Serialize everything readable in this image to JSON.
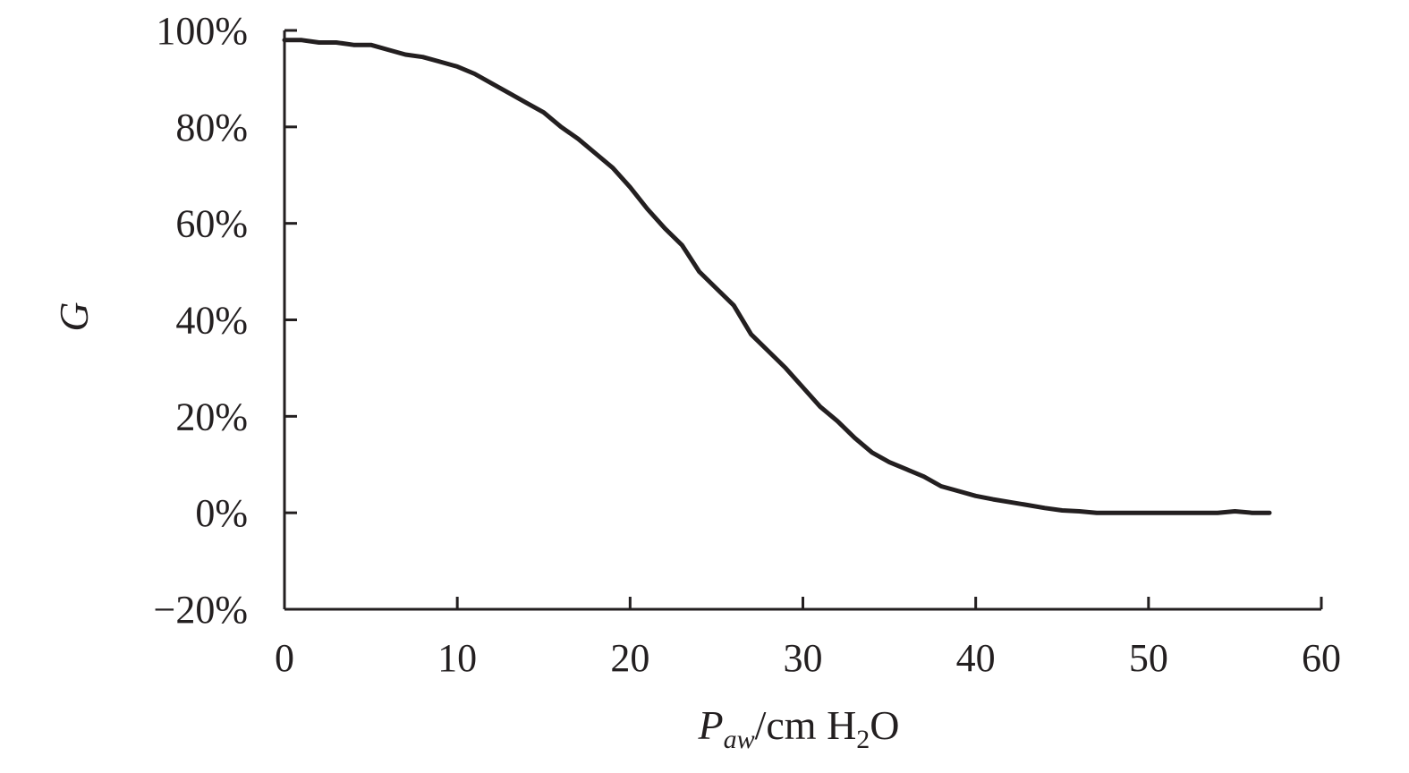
{
  "chart_data": {
    "type": "line",
    "title": "",
    "xlabel": {
      "main": "P",
      "subscript": "aw",
      "unit_prefix": "/cm H",
      "unit_subscript": "2",
      "unit_suffix": "O"
    },
    "ylabel": "G",
    "xlim": [
      0,
      60
    ],
    "ylim": [
      -20,
      100
    ],
    "x_ticks": [
      0,
      10,
      20,
      30,
      40,
      50,
      60
    ],
    "x_tick_labels": [
      "0",
      "10",
      "20",
      "30",
      "40",
      "50",
      "60"
    ],
    "y_ticks": [
      -20,
      0,
      20,
      40,
      60,
      80,
      100
    ],
    "y_tick_labels": [
      "−20%",
      "0%",
      "20%",
      "40%",
      "60%",
      "80%",
      "100%"
    ],
    "grid": false,
    "legend": "none",
    "color": "#231f20",
    "series": [
      {
        "x": [
          0,
          1,
          2,
          3,
          4,
          5,
          6,
          7,
          8,
          9,
          10,
          11,
          12,
          13,
          14,
          15,
          16,
          17,
          18,
          19,
          20,
          21,
          22,
          23,
          24,
          25,
          26,
          27,
          28,
          29,
          30,
          31,
          32,
          33,
          34,
          35,
          36,
          37,
          38,
          39,
          40,
          41,
          42,
          43,
          44,
          45,
          46,
          47,
          48,
          49,
          50,
          51,
          52,
          53,
          54,
          55,
          56,
          57
        ],
        "y": [
          98,
          98,
          97.5,
          97.5,
          97,
          97,
          96,
          95,
          94.5,
          93.5,
          92.5,
          91,
          89,
          87,
          85,
          83,
          80,
          77.5,
          74.5,
          71.5,
          67.5,
          63,
          59,
          55.5,
          50,
          46.5,
          43,
          37,
          33.5,
          30,
          26,
          22,
          19,
          15.5,
          12.5,
          10.5,
          9,
          7.5,
          5.5,
          4.5,
          3.5,
          2.8,
          2.2,
          1.6,
          1,
          0.5,
          0.3,
          0,
          0,
          0,
          0,
          0,
          0,
          0,
          0,
          0.3,
          0,
          0
        ]
      }
    ]
  }
}
